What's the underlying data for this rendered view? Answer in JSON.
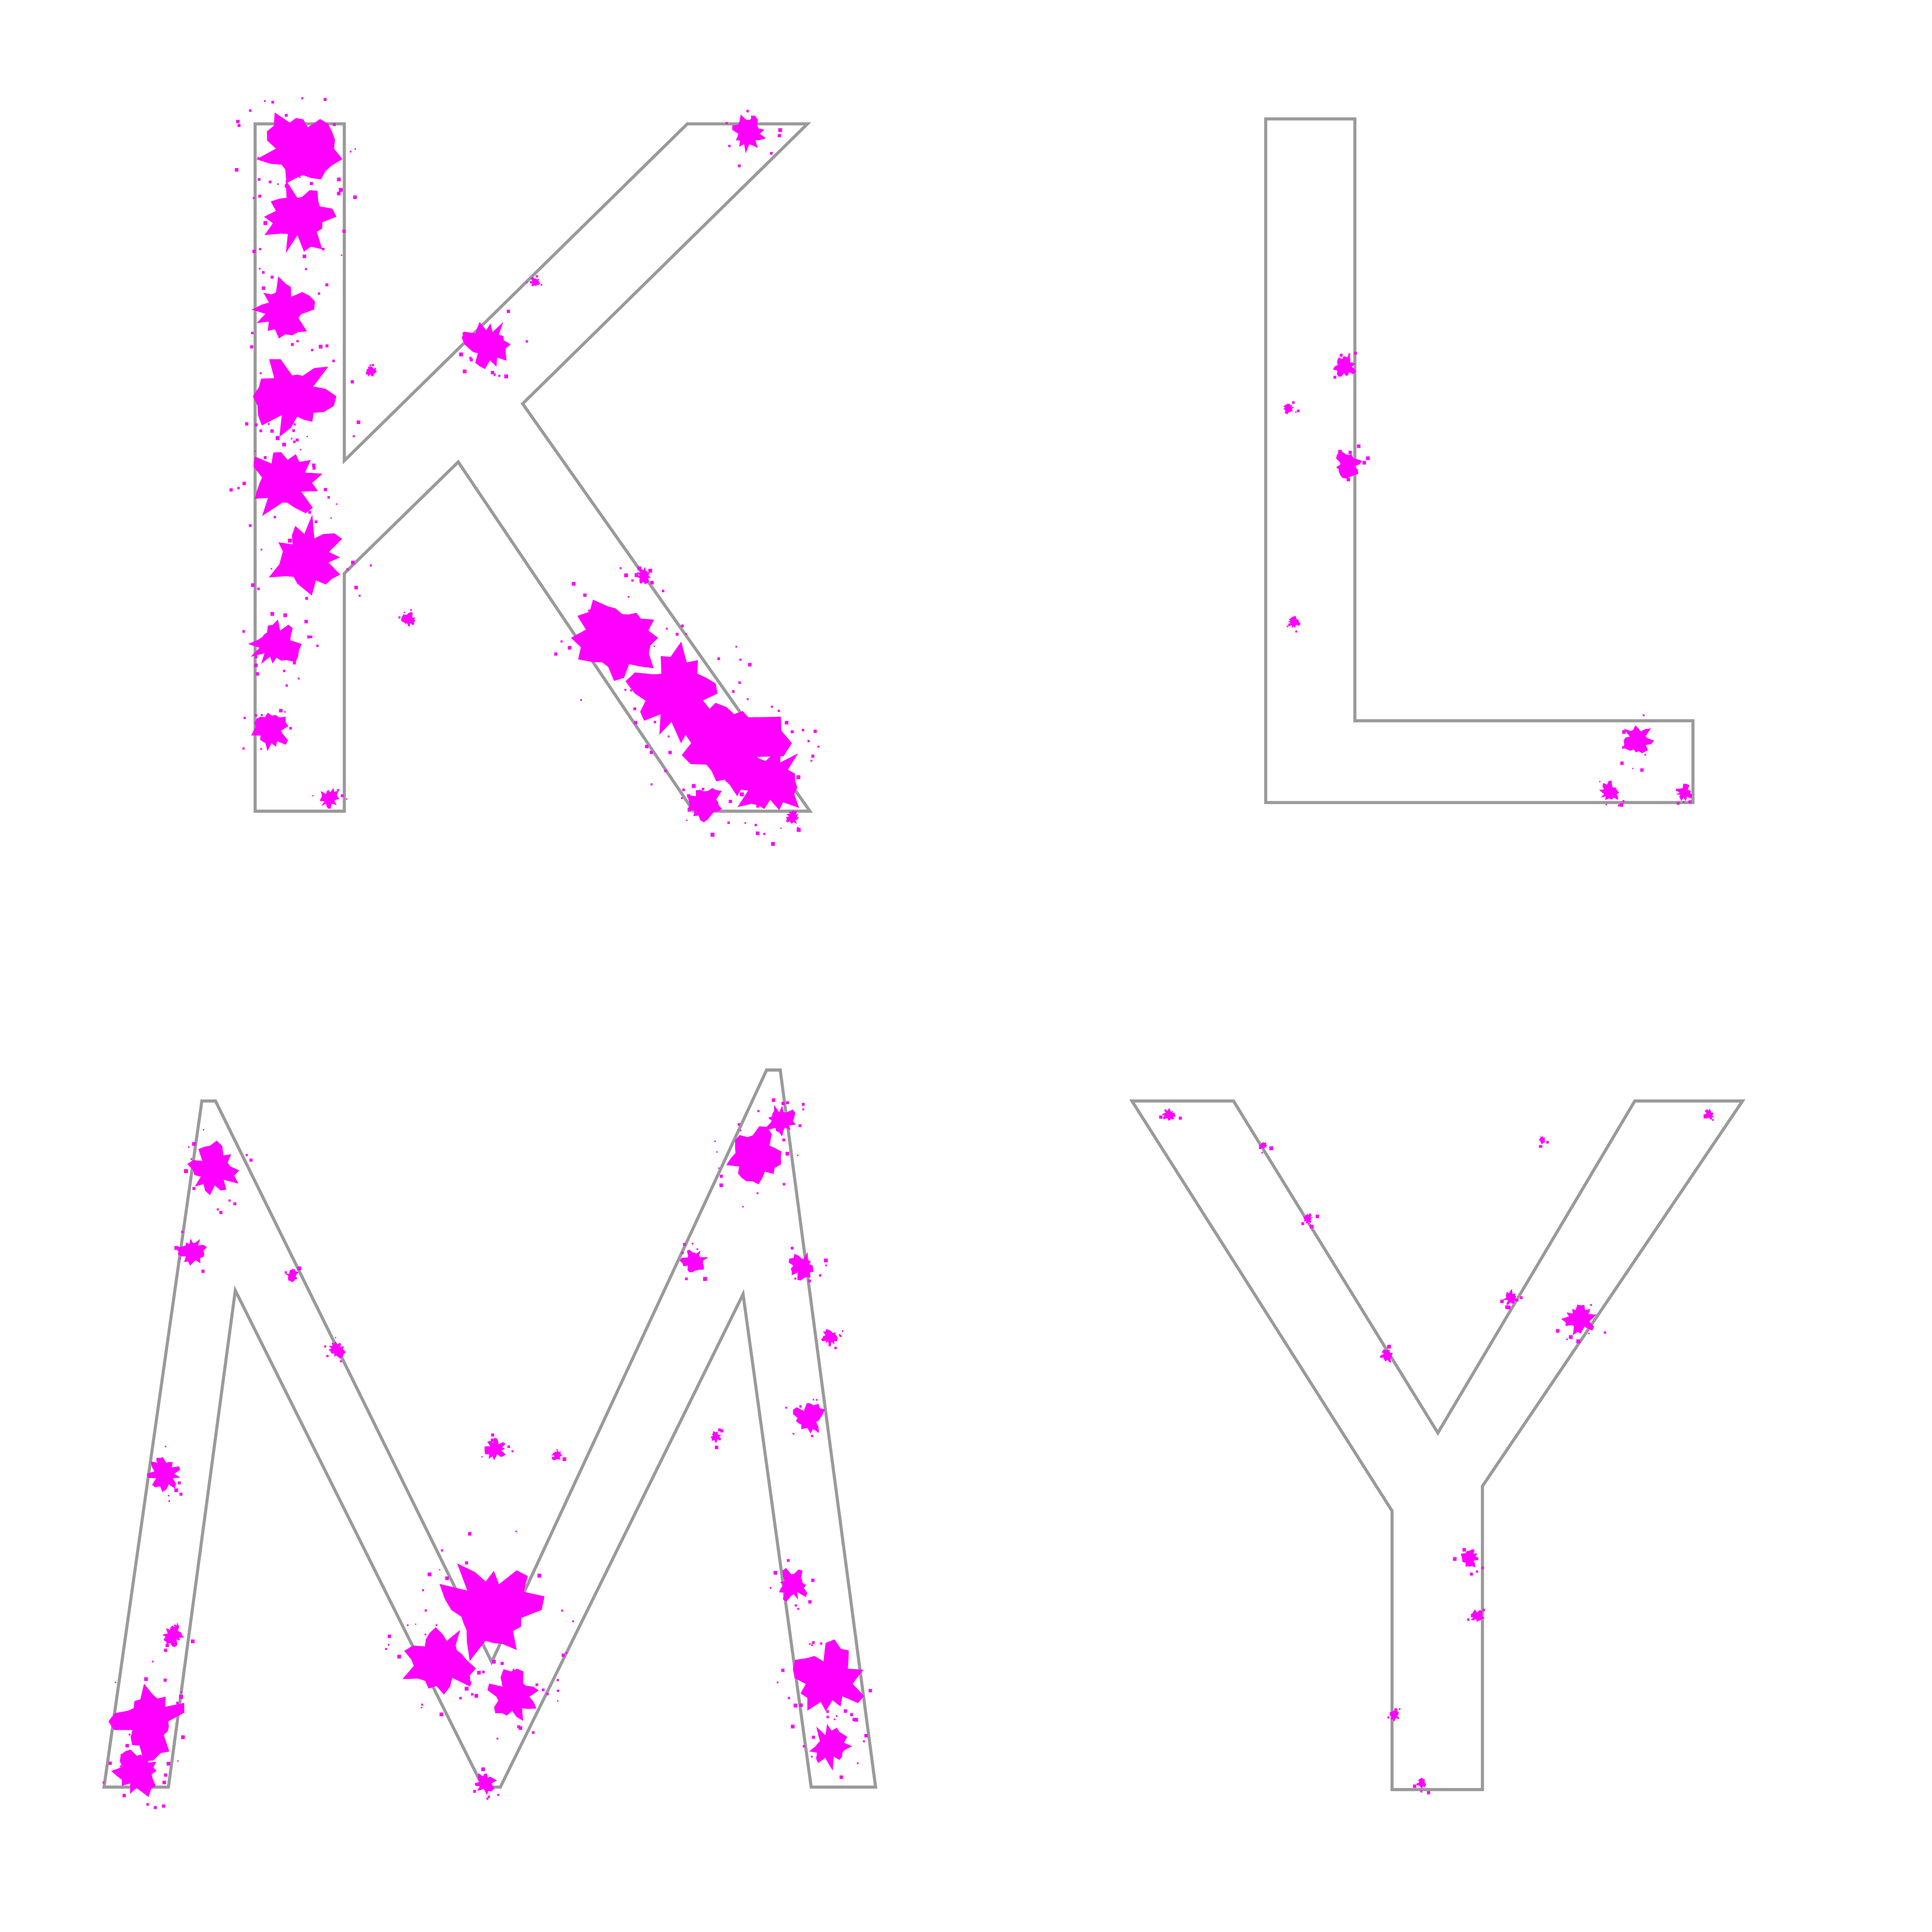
{
  "canvas": {
    "background": "#ffffff"
  },
  "colors": {
    "fill": "#ff00ff",
    "outline": "#9a9a9a"
  },
  "letters": [
    {
      "char": "K",
      "fill_level": 0.25
    },
    {
      "char": "L",
      "fill_level": 0.08
    },
    {
      "char": "M",
      "fill_level": 0.2
    },
    {
      "char": "Y",
      "fill_level": 0.06
    }
  ]
}
